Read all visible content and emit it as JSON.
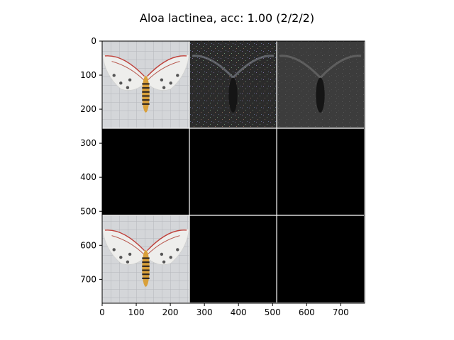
{
  "title": "Aloa lactinea, acc: 1.00 (2/2/2)",
  "chart_data": {
    "type": "image_grid",
    "title": "Aloa lactinea, acc: 1.00 (2/2/2)",
    "xlim": [
      0,
      770
    ],
    "ylim": [
      770,
      0
    ],
    "xticks": [
      0,
      100,
      200,
      300,
      400,
      500,
      600,
      700
    ],
    "yticks": [
      0,
      100,
      200,
      300,
      400,
      500,
      600,
      700
    ],
    "grid": {
      "rows": 3,
      "cols": 3,
      "tile_size": 256,
      "separator_color": "#ffffff"
    },
    "tiles": [
      {
        "row": 0,
        "col": 0,
        "content": "moth-photo",
        "name": "Aloa lactinea"
      },
      {
        "row": 0,
        "col": 1,
        "content": "saliency-map-colored"
      },
      {
        "row": 0,
        "col": 2,
        "content": "saliency-map-gray"
      },
      {
        "row": 1,
        "col": 0,
        "content": "black"
      },
      {
        "row": 1,
        "col": 1,
        "content": "black"
      },
      {
        "row": 1,
        "col": 2,
        "content": "black"
      },
      {
        "row": 2,
        "col": 0,
        "content": "moth-photo"
      },
      {
        "row": 2,
        "col": 1,
        "content": "black"
      },
      {
        "row": 2,
        "col": 2,
        "content": "black"
      }
    ],
    "colors": {
      "background": "#000000",
      "axis": "#000000",
      "separator": "#ffffff"
    }
  }
}
